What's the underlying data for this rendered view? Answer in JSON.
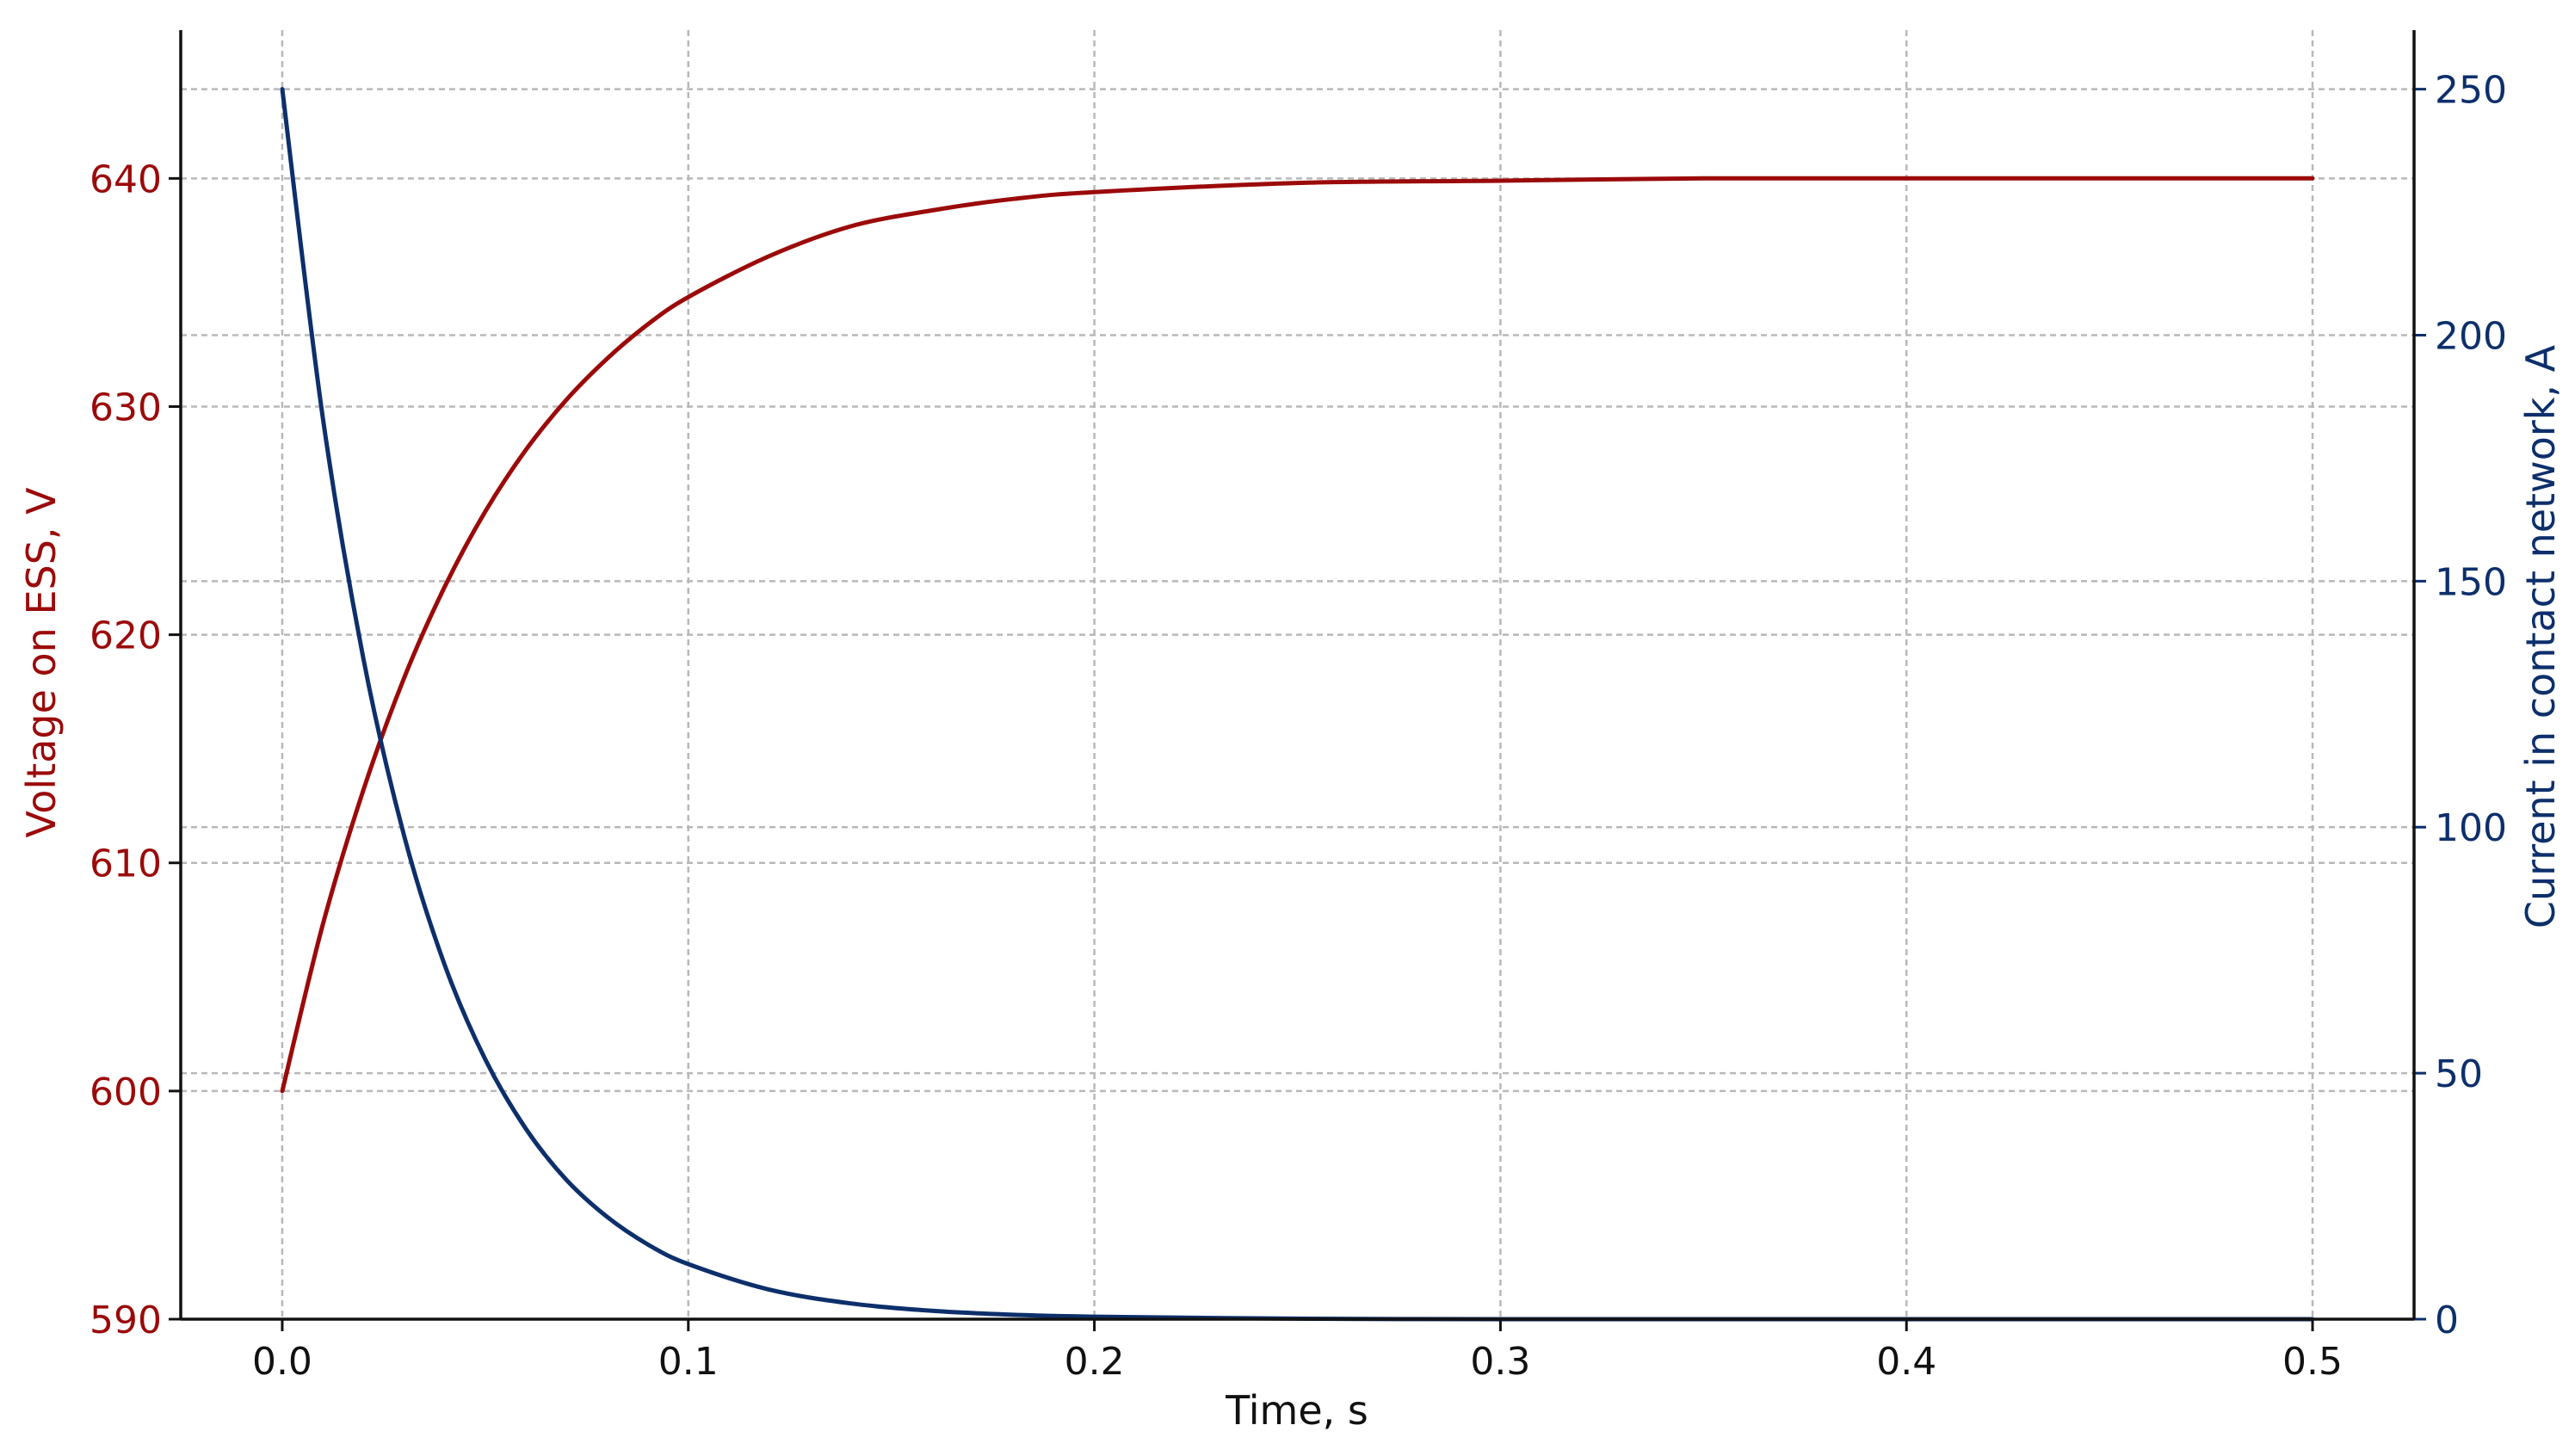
{
  "chart_data": {
    "type": "line",
    "title": "",
    "xlabel": "Time, s",
    "ylabel_left": "Voltage on ESS, V",
    "ylabel_right": "Current in contact network, A",
    "xlim": [
      -0.025,
      0.525
    ],
    "ylim_left": [
      590,
      646.5
    ],
    "ylim_right": [
      0,
      262
    ],
    "xticks": [
      0.0,
      0.1,
      0.2,
      0.3,
      0.4,
      0.5
    ],
    "xtick_labels": [
      "0.0",
      "0.1",
      "0.2",
      "0.3",
      "0.4",
      "0.5"
    ],
    "yticks_left": [
      590,
      600,
      610,
      620,
      630,
      640
    ],
    "ytick_labels_left": [
      "590",
      "600",
      "610",
      "620",
      "630",
      "640"
    ],
    "yticks_right": [
      0,
      50,
      100,
      150,
      200,
      250
    ],
    "ytick_labels_right": [
      "0",
      "50",
      "100",
      "150",
      "200",
      "250"
    ],
    "grid": true,
    "series": [
      {
        "axis": "left",
        "color": "#9b0a0a",
        "x": [
          0.0,
          0.01,
          0.02,
          0.03,
          0.04,
          0.05,
          0.06,
          0.07,
          0.08,
          0.09,
          0.1,
          0.12,
          0.14,
          0.16,
          0.18,
          0.2,
          0.25,
          0.3,
          0.35,
          0.4,
          0.45,
          0.5
        ],
        "values": [
          600.0,
          607.3,
          613.2,
          618.1,
          622.1,
          625.4,
          628.1,
          630.3,
          632.1,
          633.6,
          634.8,
          636.6,
          637.9,
          638.6,
          639.1,
          639.4,
          639.8,
          639.9,
          640.0,
          640.0,
          640.0,
          640.0
        ]
      },
      {
        "axis": "right",
        "color": "#0d2f6b",
        "x": [
          0.0,
          0.01,
          0.02,
          0.03,
          0.04,
          0.05,
          0.06,
          0.07,
          0.08,
          0.09,
          0.1,
          0.12,
          0.14,
          0.16,
          0.18,
          0.2,
          0.25,
          0.3,
          0.35,
          0.4,
          0.45,
          0.5
        ],
        "values": [
          250.0,
          183.2,
          134.2,
          98.3,
          72.0,
          52.8,
          38.7,
          28.3,
          20.8,
          15.2,
          11.2,
          6.0,
          3.2,
          1.7,
          0.9,
          0.5,
          0.1,
          0.0,
          0.0,
          0.0,
          0.0,
          0.0
        ]
      }
    ]
  }
}
